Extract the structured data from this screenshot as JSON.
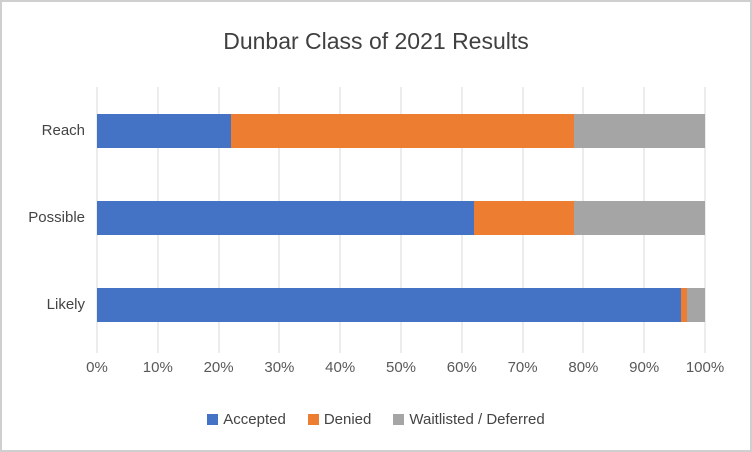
{
  "window": {
    "background": "#ffffff",
    "frame_border_color": "#cfcfcf"
  },
  "chart_data": {
    "type": "bar",
    "orientation": "horizontal",
    "stacked": true,
    "title": "Dunbar Class of 2021 Results",
    "categories": [
      "Reach",
      "Possible",
      "Likely"
    ],
    "series": [
      {
        "name": "Accepted",
        "color": "#4472C4",
        "values": [
          22,
          62,
          96
        ]
      },
      {
        "name": "Denied",
        "color": "#ED7D31",
        "values": [
          56.5,
          16.5,
          1
        ]
      },
      {
        "name": "Waitlisted / Deferred",
        "color": "#A5A5A5",
        "values": [
          21.5,
          21.5,
          3
        ]
      }
    ],
    "x_axis": {
      "min": 0,
      "max": 100,
      "tick_interval": 10,
      "tick_labels": [
        "0%",
        "10%",
        "20%",
        "30%",
        "40%",
        "50%",
        "60%",
        "70%",
        "80%",
        "90%",
        "100%"
      ]
    },
    "legend_position": "bottom",
    "grid": true,
    "gridline_color": "#D9D9D9",
    "tick_color": "#D9D9D9",
    "axis_text_color": "#595959",
    "category_text_color": "#444444",
    "title_color": "#404040"
  }
}
